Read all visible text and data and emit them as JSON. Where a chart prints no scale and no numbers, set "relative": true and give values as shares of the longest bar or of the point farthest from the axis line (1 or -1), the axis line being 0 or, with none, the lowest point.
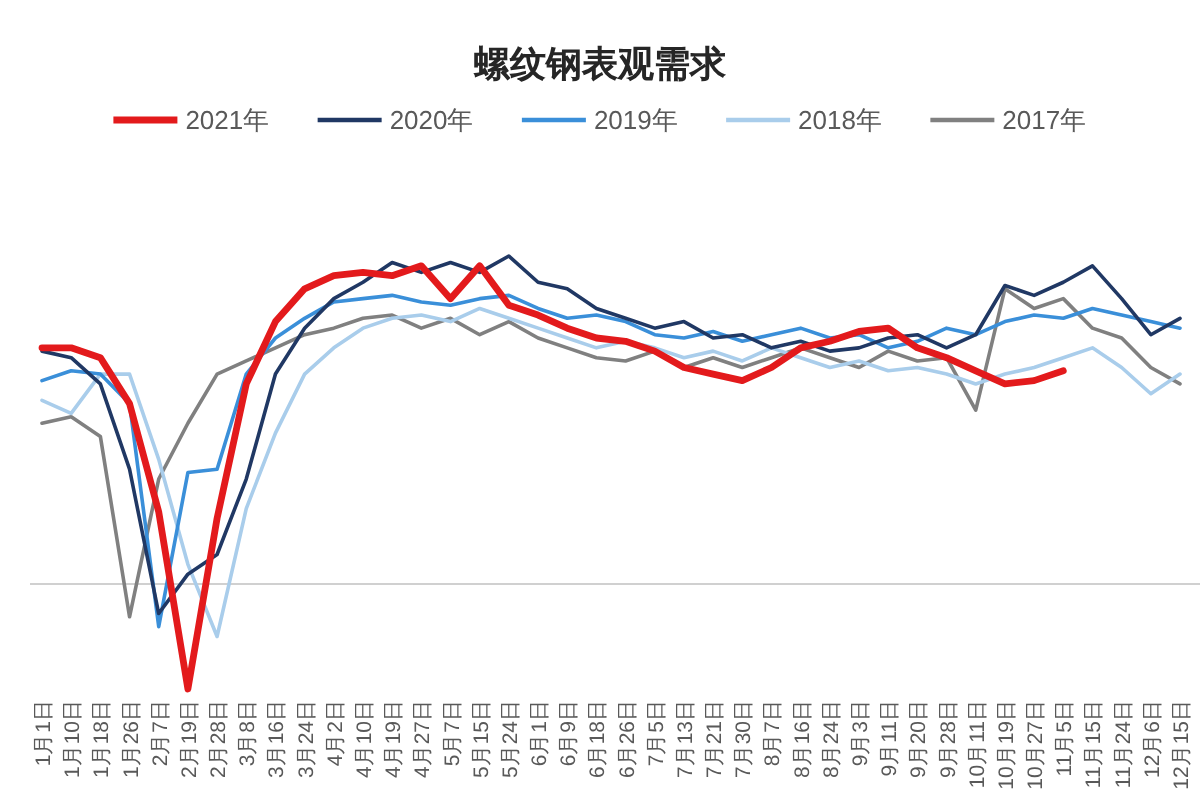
{
  "chart_data": {
    "type": "line",
    "title": "螺纹钢表观需求",
    "relative": true,
    "legend": "top",
    "categories": [
      "1月1日",
      "1月10日",
      "1月18日",
      "1月26日",
      "2月7日",
      "2月19日",
      "2月28日",
      "3月8日",
      "3月16日",
      "3月24日",
      "4月2日",
      "4月10日",
      "4月19日",
      "4月27日",
      "5月7日",
      "5月15日",
      "5月24日",
      "6月1日",
      "6月9日",
      "6月18日",
      "6月26日",
      "7月5日",
      "7月13日",
      "7月21日",
      "7月30日",
      "8月7日",
      "8月16日",
      "8月24日",
      "9月3日",
      "9月11日",
      "9月20日",
      "9月28日",
      "10月11日",
      "10月19日",
      "10月27日",
      "11月5日",
      "11月15日",
      "11月24日",
      "12月6日",
      "12月15日"
    ],
    "series": [
      {
        "name": "2021年",
        "color": "#e31a1c",
        "values": [
          0.72,
          0.72,
          0.69,
          0.55,
          0.22,
          -0.32,
          0.2,
          0.61,
          0.8,
          0.9,
          0.94,
          0.95,
          0.94,
          0.97,
          0.87,
          0.97,
          0.85,
          0.82,
          0.78,
          0.75,
          0.74,
          0.71,
          0.66,
          0.64,
          0.62,
          0.66,
          0.72,
          0.74,
          0.77,
          0.78,
          0.72,
          0.69,
          0.65,
          0.61,
          0.62,
          0.65,
          null,
          null,
          null,
          null
        ]
      },
      {
        "name": "2020年",
        "color": "#203864",
        "values": [
          0.71,
          0.69,
          0.61,
          0.35,
          -0.09,
          0.03,
          0.09,
          0.32,
          0.64,
          0.78,
          0.87,
          0.92,
          0.98,
          0.95,
          0.98,
          0.95,
          1.0,
          0.92,
          0.9,
          0.84,
          0.81,
          0.78,
          0.8,
          0.75,
          0.76,
          0.72,
          0.74,
          0.71,
          0.72,
          0.75,
          0.76,
          0.72,
          0.76,
          0.91,
          0.88,
          0.92,
          0.97,
          0.87,
          0.76,
          0.81
        ]
      },
      {
        "name": "2019年",
        "color": "#3a8fd9",
        "values": [
          0.62,
          0.65,
          0.64,
          0.55,
          -0.13,
          0.34,
          0.35,
          0.64,
          0.75,
          0.81,
          0.86,
          0.87,
          0.88,
          0.86,
          0.85,
          0.87,
          0.88,
          0.84,
          0.81,
          0.82,
          0.8,
          0.76,
          0.75,
          0.77,
          0.74,
          0.76,
          0.78,
          0.75,
          0.76,
          0.72,
          0.74,
          0.78,
          0.76,
          0.8,
          0.82,
          0.81,
          0.84,
          0.82,
          0.8,
          0.78
        ]
      },
      {
        "name": "2018年",
        "color": "#a9cdeb",
        "values": [
          0.56,
          0.52,
          0.64,
          0.64,
          0.38,
          0.06,
          -0.16,
          0.23,
          0.46,
          0.64,
          0.72,
          0.78,
          0.81,
          0.82,
          0.8,
          0.84,
          0.81,
          0.78,
          0.75,
          0.72,
          0.74,
          0.72,
          0.69,
          0.71,
          0.68,
          0.72,
          0.69,
          0.66,
          0.68,
          0.65,
          0.66,
          0.64,
          0.61,
          0.64,
          0.66,
          0.69,
          0.72,
          0.66,
          0.58,
          0.64
        ]
      },
      {
        "name": "2017年",
        "color": "#808080",
        "values": [
          0.49,
          0.51,
          0.45,
          -0.1,
          0.32,
          0.49,
          0.64,
          0.68,
          0.72,
          0.76,
          0.78,
          0.81,
          0.82,
          0.78,
          0.81,
          0.76,
          0.8,
          0.75,
          0.72,
          0.69,
          0.68,
          0.71,
          0.66,
          0.69,
          0.66,
          0.69,
          0.72,
          0.69,
          0.66,
          0.71,
          0.68,
          0.69,
          0.53,
          0.9,
          0.84,
          0.87,
          0.78,
          0.75,
          0.66,
          0.61
        ]
      }
    ]
  }
}
